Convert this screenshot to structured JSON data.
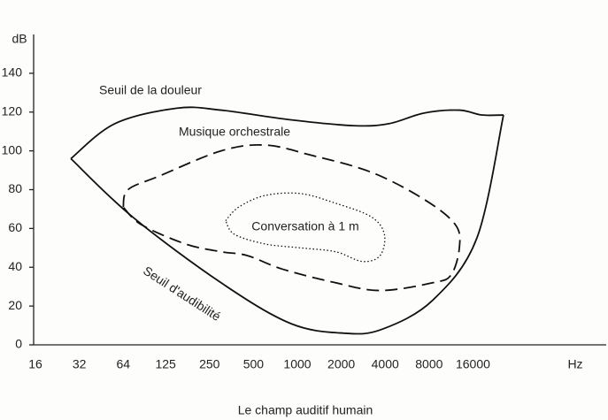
{
  "chart_data": {
    "type": "line",
    "caption": "Le champ auditif humain",
    "x_label": "Hz",
    "y_label": "dB",
    "xscale": "log",
    "xlim": [
      16,
      131072
    ],
    "ylim": [
      0,
      160
    ],
    "xticks": [
      16,
      32,
      64,
      125,
      250,
      500,
      1000,
      2000,
      4000,
      8000,
      16000
    ],
    "yticks": [
      0,
      20,
      40,
      60,
      80,
      100,
      120,
      140
    ],
    "series": [
      {
        "name": "Seuil de la douleur",
        "color": "#111111",
        "dash": "solid",
        "x": [
          28,
          56,
          149,
          300,
          900,
          2420,
          4230,
          7390,
          12900,
          18300,
          25900
        ],
        "values": [
          96,
          114,
          122,
          121,
          116,
          113,
          114,
          119.5,
          121,
          118.5,
          118.5
        ]
      },
      {
        "name": "Seuil d'audibilité",
        "color": "#111111",
        "dash": "solid",
        "x": [
          28,
          74,
          300,
          900,
          2100,
          3800,
          8470,
          17000,
          25900
        ],
        "values": [
          96,
          66,
          32,
          11,
          6,
          8,
          23,
          55,
          118.5
        ]
      },
      {
        "name": "Musique orchestrale",
        "color": "#111111",
        "dash": "dashed",
        "x": [
          64,
          69,
          113,
          300,
          601,
          1210,
          3210,
          7390,
          12100,
          12900,
          11300,
          8470,
          3690,
          1830,
          792,
          455,
          300,
          171,
          85,
          64
        ],
        "values": [
          71,
          80,
          87,
          100,
          103,
          98,
          89,
          75,
          62,
          50,
          36,
          32,
          28,
          32,
          39,
          46,
          48,
          52,
          62,
          71
        ]
      },
      {
        "name": "Conversation à 1 m",
        "color": "#111111",
        "dash": "dotted",
        "x": [
          322,
          396,
          601,
          1050,
          1830,
          3210,
          3950,
          3690,
          2780,
          1830,
          1050,
          601,
          370,
          322
        ],
        "values": [
          64,
          71,
          77,
          78,
          73,
          66,
          57,
          46,
          43,
          48,
          50,
          52,
          57,
          64
        ]
      }
    ]
  }
}
